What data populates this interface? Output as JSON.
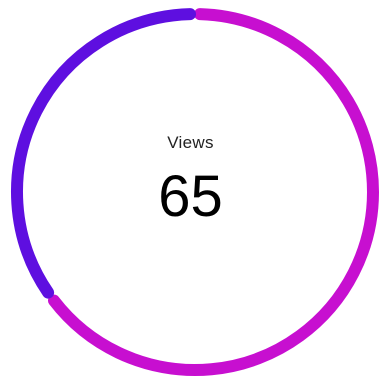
{
  "metric": {
    "label": "Views",
    "value": "65"
  },
  "chart_data": {
    "type": "pie",
    "style": "donut",
    "slices": [
      {
        "share": 0.65,
        "color": "#c70fd0"
      },
      {
        "share": 0.35,
        "color": "#5e0fe0"
      }
    ]
  }
}
